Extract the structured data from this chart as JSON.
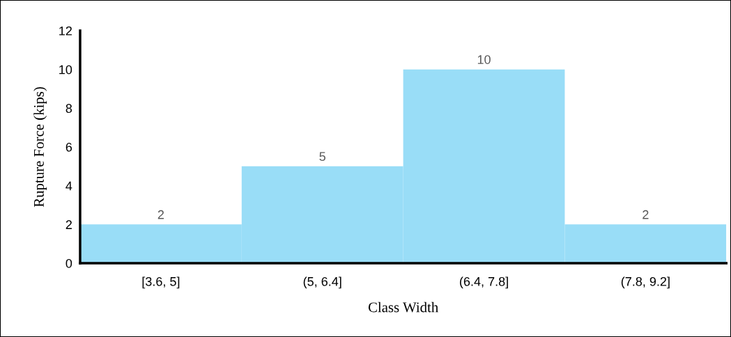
{
  "chart_data": {
    "type": "bar",
    "xlabel": "Class Width",
    "ylabel": "Rupture Force (kips)",
    "categories": [
      "[3.6, 5]",
      "(5, 6.4]",
      "(6.4, 7.8]",
      "(7.8, 9.2]"
    ],
    "values": [
      2,
      5,
      10,
      2
    ],
    "color": "#99ddf7",
    "ylim": [
      0,
      12
    ],
    "yticks": [
      0,
      2,
      4,
      6,
      8,
      10,
      12
    ],
    "grid": false,
    "data_labels": true
  }
}
